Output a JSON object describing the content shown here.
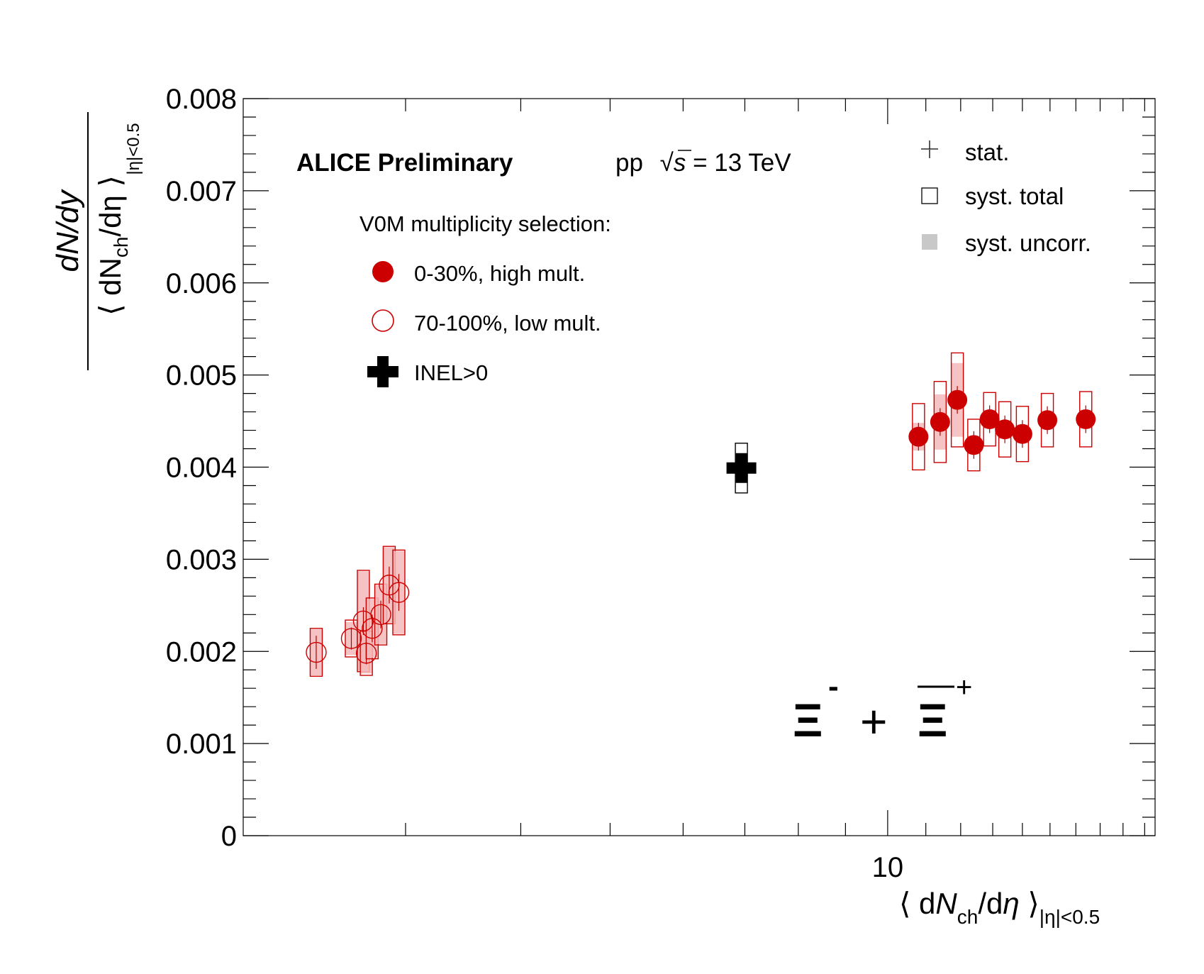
{
  "chart_data": {
    "type": "scatter",
    "x_scale": "log",
    "xlim": [
      2.0,
      19.5
    ],
    "ylim": [
      0,
      0.008
    ],
    "grid": false,
    "legend_position": "top-left and top-right",
    "x_tick_labels": [
      "10"
    ],
    "x_tick_values": [
      10
    ],
    "y_tick_labels": [
      "0",
      "0.001",
      "0.002",
      "0.003",
      "0.004",
      "0.005",
      "0.006",
      "0.007",
      "0.008"
    ],
    "y_tick_values": [
      0,
      0.001,
      0.002,
      0.003,
      0.004,
      0.005,
      0.006,
      0.007,
      0.008
    ],
    "xlabel": {
      "pre": "⟨ d",
      "N": "N",
      "sub": "ch",
      "mid": "/d",
      "eta": "η",
      "post": " ⟩",
      "sub2": "|η|<0.5"
    },
    "ylabel": {
      "num": "dN/dy",
      "den_pre": "⟨ dN",
      "den_sub": "ch",
      "den_mid": "/dη ⟩",
      "den_sub2": "|η|<0.5"
    },
    "annotations": {
      "experiment": "ALICE Preliminary",
      "system_pp": "pp",
      "sqrt": "√",
      "s": "s",
      "energy": "= 13 TeV",
      "selection_title": "V0M multiplicity selection:",
      "particle_xi": "Ξ",
      "particle_minus": "-",
      "particle_plus_op": "+",
      "particle_plus": "+"
    },
    "legend_left": [
      {
        "label": "0-30%, high mult.",
        "marker": "filled-circle"
      },
      {
        "label": "70-100%, low mult.",
        "marker": "open-circle"
      },
      {
        "label": "INEL>0",
        "marker": "thick-cross"
      }
    ],
    "legend_right": [
      {
        "label": "stat.",
        "marker": "cross"
      },
      {
        "label": "syst. total",
        "marker": "open-box"
      },
      {
        "label": "syst. uncorr.",
        "marker": "filled-box"
      }
    ],
    "series": [
      {
        "name": "0-30%, high mult.",
        "color": "#cc0000",
        "marker": "filled-circle",
        "points": [
          {
            "x": 10.8,
            "y": 0.00433,
            "stat": 0.00015,
            "syst_total": 0.00036,
            "syst_uncorr": 0.00015
          },
          {
            "x": 11.4,
            "y": 0.00449,
            "stat": 0.00015,
            "syst_total": 0.00044,
            "syst_uncorr": 0.0003
          },
          {
            "x": 11.9,
            "y": 0.00473,
            "stat": 0.00015,
            "syst_total": 0.00051,
            "syst_uncorr": 0.0004
          },
          {
            "x": 12.4,
            "y": 0.00424,
            "stat": 0.00015,
            "syst_total": 0.00028,
            "syst_uncorr": 0.0001
          },
          {
            "x": 12.9,
            "y": 0.00452,
            "stat": 0.00015,
            "syst_total": 0.00029,
            "syst_uncorr": 0.0001
          },
          {
            "x": 13.4,
            "y": 0.00441,
            "stat": 0.00015,
            "syst_total": 0.0003,
            "syst_uncorr": 0.0001
          },
          {
            "x": 14.0,
            "y": 0.00436,
            "stat": 0.00015,
            "syst_total": 0.0003,
            "syst_uncorr": 0.0001
          },
          {
            "x": 14.9,
            "y": 0.00451,
            "stat": 0.00015,
            "syst_total": 0.00029,
            "syst_uncorr": 0.0001
          },
          {
            "x": 16.4,
            "y": 0.00452,
            "stat": 0.00015,
            "syst_total": 0.0003,
            "syst_uncorr": 0.0001
          }
        ]
      },
      {
        "name": "70-100%, low mult.",
        "color": "#cc0000",
        "marker": "open-circle",
        "points": [
          {
            "x": 2.4,
            "y": 0.00199,
            "stat": 0.00018,
            "syst_total": 0.00026,
            "syst_uncorr": 0.00025
          },
          {
            "x": 2.62,
            "y": 0.00214,
            "stat": 0.00012,
            "syst_total": 0.0002,
            "syst_uncorr": 0.00018
          },
          {
            "x": 2.7,
            "y": 0.00233,
            "stat": 0.00015,
            "syst_total": 0.00055,
            "syst_uncorr": 0.00054
          },
          {
            "x": 2.72,
            "y": 0.00198,
            "stat": 0.00012,
            "syst_total": 0.00024,
            "syst_uncorr": 0.00022
          },
          {
            "x": 2.76,
            "y": 0.00225,
            "stat": 0.00015,
            "syst_total": 0.00033,
            "syst_uncorr": 0.00032
          },
          {
            "x": 2.82,
            "y": 0.0024,
            "stat": 0.00015,
            "syst_total": 0.00033,
            "syst_uncorr": 0.00032
          },
          {
            "x": 2.88,
            "y": 0.00272,
            "stat": 0.0002,
            "syst_total": 0.00042,
            "syst_uncorr": 0.00041
          },
          {
            "x": 2.95,
            "y": 0.00264,
            "stat": 0.0002,
            "syst_total": 0.00046,
            "syst_uncorr": 0.00045
          }
        ]
      },
      {
        "name": "INEL>0",
        "color": "#000000",
        "marker": "thick-cross",
        "points": [
          {
            "x": 6.94,
            "y": 0.00399,
            "stat": 5e-05,
            "syst_total": 0.00027,
            "syst_uncorr": 0.0
          }
        ]
      }
    ]
  }
}
